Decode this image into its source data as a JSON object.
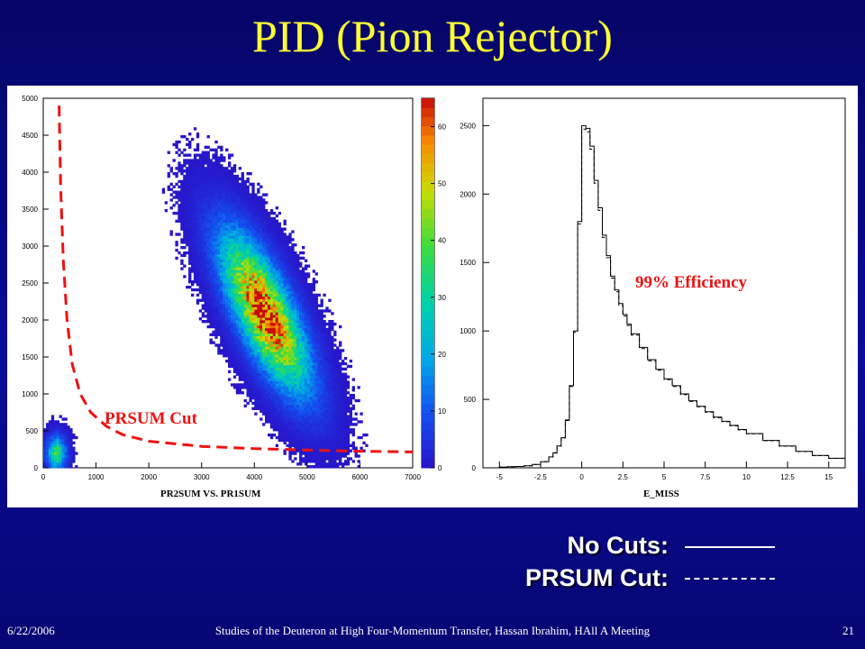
{
  "slide": {
    "title": "PID (Pion Rejector)",
    "footer_date": "6/22/2006",
    "footer_center": "Studies of the Deuteron at High Four-Momentum Transfer, Hassan Ibrahim, HAll A Meeting",
    "page_number": "21"
  },
  "legend": {
    "no_cuts_label": "No Cuts:",
    "prsum_cut_label": "PRSUM Cut:"
  },
  "annotations": {
    "prsum_cut": "PRSUM Cut",
    "efficiency": "99% Efficiency"
  },
  "colors": {
    "title": "#ffff33",
    "annotation": "#ee1111",
    "cut_line": "#ee1111"
  },
  "chart_data": [
    {
      "type": "heatmap",
      "title": "PR2SUM VS. PR1SUM",
      "xlabel": "",
      "ylabel": "",
      "xlim": [
        0,
        7000
      ],
      "ylim": [
        0,
        5000
      ],
      "x_ticks": [
        "0",
        "1000",
        "2000",
        "3000",
        "4000",
        "5000",
        "6000",
        "7000"
      ],
      "y_ticks": [
        "0",
        "500",
        "1000",
        "1500",
        "2000",
        "2500",
        "3000",
        "3500",
        "4000",
        "4500",
        "5000"
      ],
      "colorbar": {
        "range": [
          0,
          65
        ],
        "ticks": [
          "0",
          "10",
          "20",
          "30",
          "40",
          "50",
          "60"
        ]
      },
      "distribution": [
        {
          "center": [
            4200,
            2100
          ],
          "direction": [
            -0.58,
            0.81
          ],
          "sigma_major": 800,
          "sigma_minor": 300,
          "peak": 65
        },
        {
          "center": [
            250,
            200
          ],
          "direction": [
            1,
            0
          ],
          "sigma_major": 120,
          "sigma_minor": 150,
          "peak": 35
        }
      ],
      "cut_curve": [
        [
          300,
          4900
        ],
        [
          330,
          3800
        ],
        [
          380,
          2800
        ],
        [
          450,
          2000
        ],
        [
          550,
          1400
        ],
        [
          700,
          1000
        ],
        [
          900,
          750
        ],
        [
          1200,
          560
        ],
        [
          1500,
          450
        ],
        [
          2000,
          360
        ],
        [
          3000,
          290
        ],
        [
          4000,
          260
        ],
        [
          5000,
          240
        ],
        [
          6000,
          225
        ],
        [
          7000,
          215
        ]
      ],
      "cut_label": "PRSUM Cut"
    },
    {
      "type": "line",
      "title": "E_MISS",
      "xlabel": "",
      "ylabel": "",
      "xlim": [
        -6,
        16
      ],
      "ylim": [
        0,
        2700
      ],
      "x_ticks": [
        "-5",
        "-2.5",
        "0",
        "2.5",
        "5",
        "7.5",
        "10",
        "12.5",
        "15"
      ],
      "y_ticks": [
        "0",
        "500",
        "1000",
        "1500",
        "2000",
        "2500"
      ],
      "series": [
        {
          "style": "solid",
          "x": [
            -5,
            -4.5,
            -4,
            -3.5,
            -3,
            -2.5,
            -2,
            -1.75,
            -1.5,
            -1.25,
            -1,
            -0.75,
            -0.5,
            -0.25,
            0,
            0.25,
            0.5,
            0.75,
            1,
            1.25,
            1.5,
            1.75,
            2,
            2.25,
            2.5,
            2.75,
            3,
            3.5,
            4,
            4.5,
            5,
            5.5,
            6,
            6.5,
            7,
            7.5,
            8,
            8.5,
            9,
            9.5,
            10,
            11,
            12,
            13,
            14,
            15
          ],
          "y": [
            5,
            8,
            10,
            15,
            25,
            45,
            80,
            110,
            160,
            220,
            350,
            600,
            1000,
            1800,
            2500,
            2480,
            2350,
            2100,
            1900,
            1700,
            1550,
            1400,
            1300,
            1200,
            1120,
            1050,
            980,
            880,
            790,
            720,
            650,
            600,
            540,
            490,
            450,
            410,
            370,
            340,
            310,
            280,
            250,
            200,
            160,
            120,
            90,
            70
          ]
        },
        {
          "style": "dashed",
          "x": [
            -5,
            -4.5,
            -4,
            -3.5,
            -3,
            -2.5,
            -2,
            -1.75,
            -1.5,
            -1.25,
            -1,
            -0.75,
            -0.5,
            -0.25,
            0,
            0.25,
            0.5,
            0.75,
            1,
            1.25,
            1.5,
            1.75,
            2,
            2.25,
            2.5,
            2.75,
            3,
            3.5,
            4,
            4.5,
            5,
            5.5,
            6,
            6.5,
            7,
            7.5,
            8,
            8.5,
            9,
            9.5,
            10,
            11,
            12,
            13,
            14,
            15
          ],
          "y": [
            5,
            8,
            10,
            15,
            24,
            44,
            79,
            108,
            158,
            217,
            346,
            594,
            990,
            1782,
            2475,
            2455,
            2327,
            2079,
            1881,
            1683,
            1535,
            1386,
            1287,
            1188,
            1109,
            1040,
            970,
            871,
            782,
            713,
            644,
            594,
            535,
            485,
            446,
            406,
            366,
            337,
            307,
            277,
            248,
            198,
            158,
            119,
            89,
            69
          ]
        }
      ],
      "annotation": "99% Efficiency"
    }
  ]
}
